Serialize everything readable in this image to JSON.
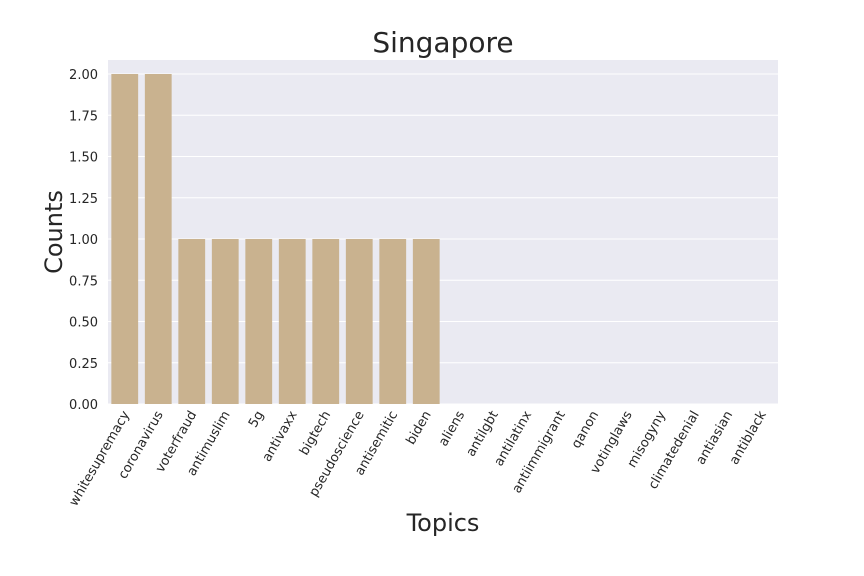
{
  "chart_data": {
    "type": "bar",
    "title": "Singapore",
    "xlabel": "Topics",
    "ylabel": "Counts",
    "categories": [
      "whitesupremacy",
      "coronavirus",
      "voterfraud",
      "antimuslim",
      "5g",
      "antivaxx",
      "bigtech",
      "pseudoscience",
      "antisemitic",
      "biden",
      "aliens",
      "antilgbt",
      "antilatinx",
      "antiimmigrant",
      "qanon",
      "votinglaws",
      "misogyny",
      "climatedenial",
      "antiasian",
      "antiblack"
    ],
    "values": [
      2,
      2,
      1,
      1,
      1,
      1,
      1,
      1,
      1,
      1,
      0,
      0,
      0,
      0,
      0,
      0,
      0,
      0,
      0,
      0
    ],
    "ylim": [
      0,
      2
    ],
    "yticks": [
      "0.00",
      "0.25",
      "0.50",
      "0.75",
      "1.00",
      "1.25",
      "1.50",
      "1.75",
      "2.00"
    ],
    "grid": true,
    "colors": {
      "bar": "#c9b28f",
      "plot_bg": "#eaeaf2",
      "grid": "#ffffff",
      "text": "#262626"
    }
  }
}
